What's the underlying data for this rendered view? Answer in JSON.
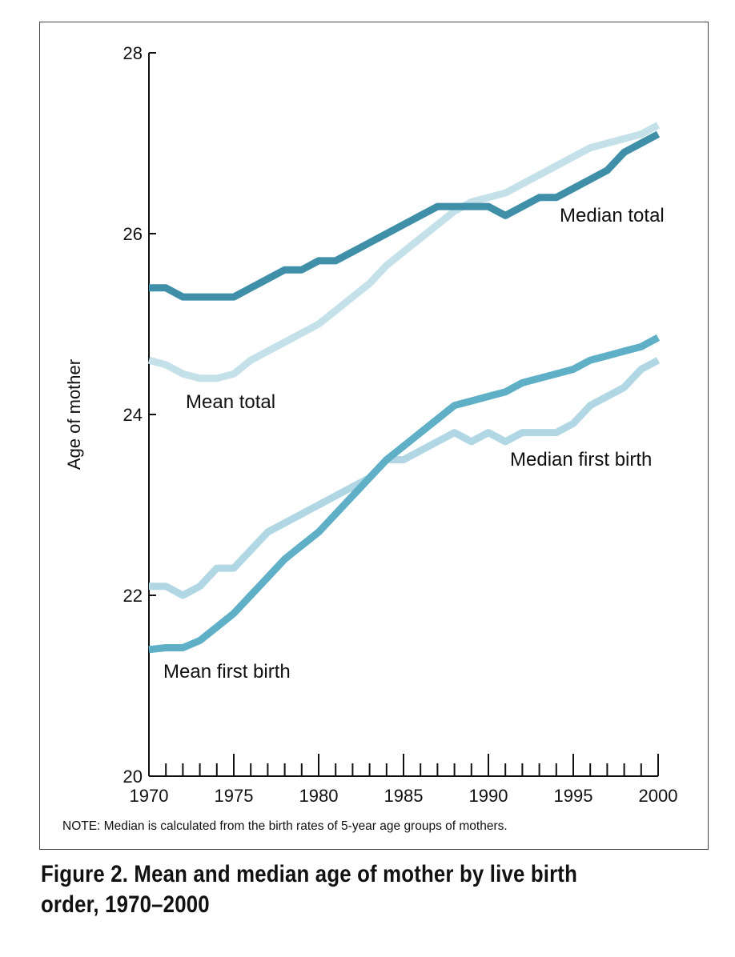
{
  "caption": "Figure 2. Mean and median age of mother by live birth order, 1970–2000",
  "note": "NOTE: Median is calculated from the birth rates of 5-year age groups of mothers.",
  "chart_data": {
    "type": "line",
    "title": "Figure 2. Mean and median age of mother by live birth order, 1970–2000",
    "xlabel": "",
    "ylabel": "Age of mother",
    "xlim": [
      1970,
      2000
    ],
    "ylim": [
      20,
      28
    ],
    "x_ticks": [
      1970,
      1975,
      1980,
      1985,
      1990,
      1995,
      2000
    ],
    "y_ticks": [
      20,
      22,
      24,
      26,
      28
    ],
    "grid": false,
    "x": [
      1970,
      1971,
      1972,
      1973,
      1974,
      1975,
      1976,
      1977,
      1978,
      1979,
      1980,
      1981,
      1982,
      1983,
      1984,
      1985,
      1986,
      1987,
      1988,
      1989,
      1990,
      1991,
      1992,
      1993,
      1994,
      1995,
      1996,
      1997,
      1998,
      1999,
      2000
    ],
    "series": [
      {
        "name": "Median total",
        "color": "#3f8fa9",
        "values": [
          25.4,
          25.4,
          25.3,
          25.3,
          25.3,
          25.3,
          25.4,
          25.5,
          25.6,
          25.6,
          25.7,
          25.7,
          25.8,
          25.9,
          26.0,
          26.1,
          26.2,
          26.3,
          26.3,
          26.3,
          26.3,
          26.2,
          26.3,
          26.4,
          26.4,
          26.5,
          26.6,
          26.7,
          26.9,
          27.0,
          27.1
        ]
      },
      {
        "name": "Mean total",
        "color": "#c4e1ea",
        "values": [
          24.6,
          24.55,
          24.45,
          24.4,
          24.4,
          24.45,
          24.6,
          24.7,
          24.8,
          24.9,
          25.0,
          25.15,
          25.3,
          25.45,
          25.65,
          25.8,
          25.95,
          26.1,
          26.25,
          26.35,
          26.4,
          26.45,
          26.55,
          26.65,
          26.75,
          26.85,
          26.95,
          27.0,
          27.05,
          27.1,
          27.2
        ]
      },
      {
        "name": "Median first birth",
        "color": "#b0d7e3",
        "values": [
          22.1,
          22.1,
          22.0,
          22.1,
          22.3,
          22.3,
          22.5,
          22.7,
          22.8,
          22.9,
          23.0,
          23.1,
          23.2,
          23.3,
          23.5,
          23.5,
          23.6,
          23.7,
          23.8,
          23.7,
          23.8,
          23.7,
          23.8,
          23.8,
          23.8,
          23.9,
          24.1,
          24.2,
          24.3,
          24.5,
          24.6
        ]
      },
      {
        "name": "Mean first birth",
        "color": "#5fb0c6",
        "values": [
          21.4,
          21.42,
          21.42,
          21.5,
          21.65,
          21.8,
          22.0,
          22.2,
          22.4,
          22.55,
          22.7,
          22.9,
          23.1,
          23.3,
          23.5,
          23.65,
          23.8,
          23.95,
          24.1,
          24.15,
          24.2,
          24.25,
          24.35,
          24.4,
          24.45,
          24.5,
          24.6,
          24.65,
          24.7,
          24.75,
          24.85
        ]
      }
    ]
  }
}
